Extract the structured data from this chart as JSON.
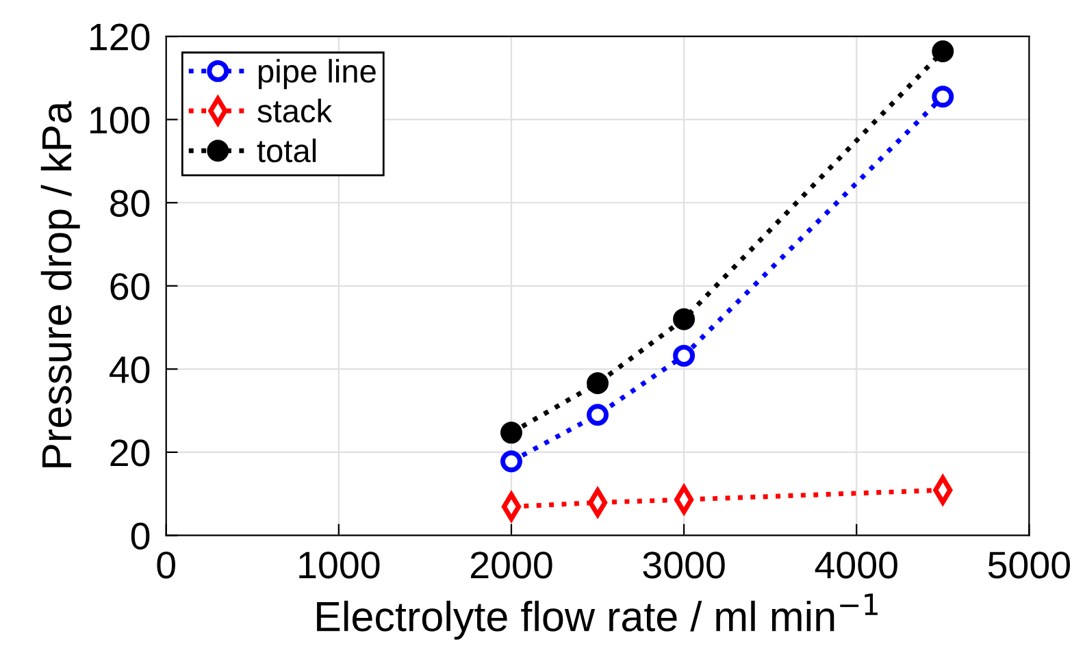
{
  "chart_data": {
    "type": "line",
    "xlabel": "Electrolyte flow rate / ml min$^{−1}$",
    "ylabel": "Pressure drop / kPa",
    "x": [
      2000,
      2500,
      3000,
      4500
    ],
    "series": [
      {
        "name": "pipe line",
        "color": "#0000ff",
        "marker": "circle",
        "values": [
          17.8,
          29,
          43.2,
          105.5
        ]
      },
      {
        "name": "stack",
        "color": "#ff0000",
        "marker": "diamond",
        "values": [
          6.9,
          7.9,
          8.6,
          10.9
        ]
      },
      {
        "name": "total",
        "color": "#000000",
        "marker": "circle",
        "values": [
          24.7,
          36.6,
          52,
          116.4
        ]
      }
    ],
    "xlim": [
      0,
      5000
    ],
    "xticks": [
      0,
      1000,
      2000,
      3000,
      4000,
      5000
    ],
    "ylim": [
      0,
      120
    ],
    "yticks": [
      0,
      20,
      40,
      60,
      80,
      100,
      120
    ],
    "grid": true,
    "legend": "top left",
    "line_style": "dotted"
  }
}
